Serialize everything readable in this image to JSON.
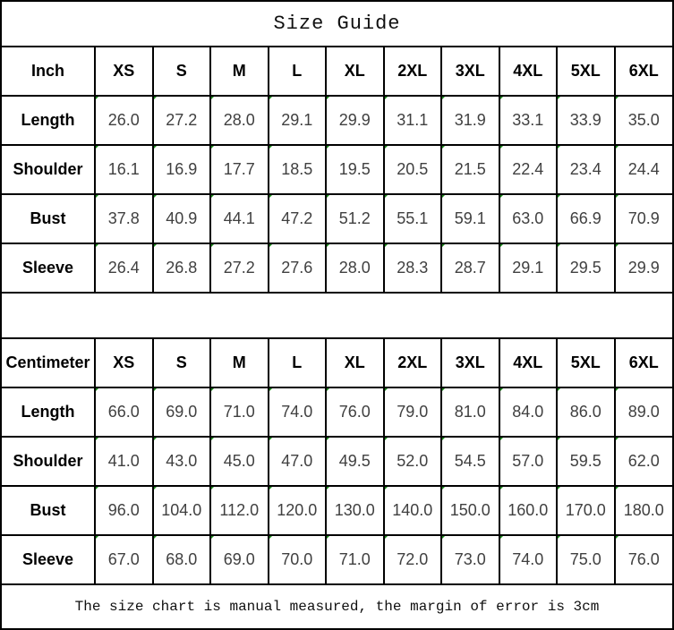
{
  "title": "Size Guide",
  "footer_note": "The size chart is manual measured, the margin of error is 3cm",
  "sizes": [
    "XS",
    "S",
    "M",
    "L",
    "XL",
    "2XL",
    "3XL",
    "4XL",
    "5XL",
    "6XL"
  ],
  "tables": [
    {
      "unit_label": "Inch",
      "rows": [
        {
          "label": "Length",
          "values": [
            "26.0",
            "27.2",
            "28.0",
            "29.1",
            "29.9",
            "31.1",
            "31.9",
            "33.1",
            "33.9",
            "35.0"
          ]
        },
        {
          "label": "Shoulder",
          "values": [
            "16.1",
            "16.9",
            "17.7",
            "18.5",
            "19.5",
            "20.5",
            "21.5",
            "22.4",
            "23.4",
            "24.4"
          ]
        },
        {
          "label": "Bust",
          "values": [
            "37.8",
            "40.9",
            "44.1",
            "47.2",
            "51.2",
            "55.1",
            "59.1",
            "63.0",
            "66.9",
            "70.9"
          ]
        },
        {
          "label": "Sleeve",
          "values": [
            "26.4",
            "26.8",
            "27.2",
            "27.6",
            "28.0",
            "28.3",
            "28.7",
            "29.1",
            "29.5",
            "29.9"
          ]
        }
      ]
    },
    {
      "unit_label": "Centimeter",
      "rows": [
        {
          "label": "Length",
          "values": [
            "66.0",
            "69.0",
            "71.0",
            "74.0",
            "76.0",
            "79.0",
            "81.0",
            "84.0",
            "86.0",
            "89.0"
          ]
        },
        {
          "label": "Shoulder",
          "values": [
            "41.0",
            "43.0",
            "45.0",
            "47.0",
            "49.5",
            "52.0",
            "54.5",
            "57.0",
            "59.5",
            "62.0"
          ]
        },
        {
          "label": "Bust",
          "values": [
            "96.0",
            "104.0",
            "112.0",
            "120.0",
            "130.0",
            "140.0",
            "150.0",
            "160.0",
            "170.0",
            "180.0"
          ]
        },
        {
          "label": "Sleeve",
          "values": [
            "67.0",
            "68.0",
            "69.0",
            "70.0",
            "71.0",
            "72.0",
            "73.0",
            "74.0",
            "75.0",
            "76.0"
          ]
        }
      ]
    }
  ],
  "colors": {
    "border": "#000000",
    "triangle_green": "#178a17",
    "value_text": "#404040",
    "label_text": "#000000"
  }
}
